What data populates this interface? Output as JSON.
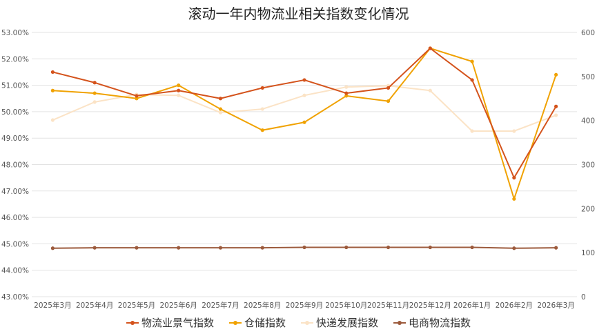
{
  "chart_data": {
    "type": "line",
    "title": "滚动一年内物流业相关指数变化情况",
    "categories": [
      "2025年3月",
      "2025年4月",
      "2025年5月",
      "2025年6月",
      "2025年7月",
      "2025年8月",
      "2025年9月",
      "2025年10月",
      "2025年11月",
      "2025年12月",
      "2026年1月",
      "2026年2月",
      "2026年3月"
    ],
    "y_left": {
      "min": 43,
      "max": 53,
      "step": 1,
      "format": "percent",
      "ticks": [
        "43.00%",
        "44.00%",
        "45.00%",
        "46.00%",
        "47.00%",
        "48.00%",
        "49.00%",
        "50.00%",
        "51.00%",
        "52.00%",
        "53.00%"
      ]
    },
    "y_right": {
      "min": 0,
      "max": 600,
      "step": 100,
      "ticks": [
        "0",
        "100",
        "200",
        "300",
        "400",
        "500",
        "600"
      ]
    },
    "grid": true,
    "legend_position": "bottom",
    "series": [
      {
        "name": "物流业景气指数",
        "axis": "left",
        "color": "#D4531C",
        "values": [
          51.5,
          51.1,
          50.6,
          50.8,
          50.5,
          50.9,
          51.2,
          50.7,
          50.9,
          52.4,
          51.2,
          47.5,
          50.2
        ]
      },
      {
        "name": "仓储指数",
        "axis": "left",
        "color": "#F0A202",
        "values": [
          50.8,
          50.7,
          50.5,
          51.0,
          50.1,
          49.3,
          49.6,
          50.6,
          50.4,
          52.4,
          51.9,
          46.7,
          51.4
        ]
      },
      {
        "name": "快递发展指数",
        "axis": "right",
        "color": "#FBE3C6",
        "values": [
          401,
          442,
          459,
          457,
          418,
          426,
          457,
          476,
          479,
          468,
          376,
          376,
          412
        ]
      },
      {
        "name": "电商物流指数",
        "axis": "right",
        "color": "#9C5A3C",
        "values": [
          110,
          111,
          111,
          111,
          111,
          111,
          112,
          112,
          112,
          112,
          112,
          110,
          111
        ]
      }
    ]
  }
}
